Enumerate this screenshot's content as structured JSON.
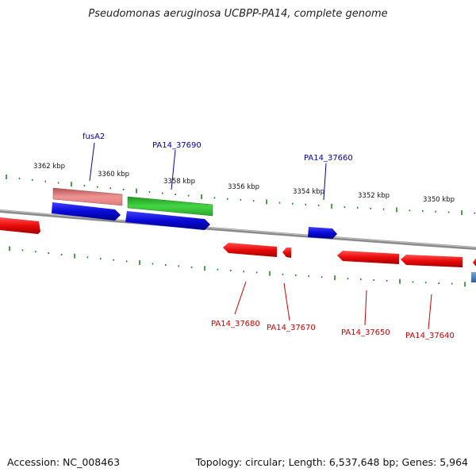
{
  "title": "Pseudomonas aeruginosa UCBPP-PA14, complete genome",
  "footer": {
    "accession": "Accession: NC_008463",
    "summary": "Topology: circular; Length: 6,537,648 bp; Genes: 5,964"
  },
  "colors": {
    "backbone": "#8a8a8a",
    "tick": "#1f8a1f",
    "forward_gene": "#0a0ad8",
    "reverse_gene": "#ea0a0a",
    "highlight_gene": "#2fc12f",
    "faded_gene": "#e88585",
    "partial_gene": "#3a78b8",
    "label_forward": "#0000aa",
    "label_reverse": "#cc0000"
  },
  "scale_labels": [
    "3362 kbp",
    "3360 kbp",
    "3358 kbp",
    "3356 kbp",
    "3354 kbp",
    "3352 kbp",
    "3350 kbp"
  ],
  "gene_labels": {
    "fusA2": "fusA2",
    "pa14_37690": "PA14_37690",
    "pa14_37660": "PA14_37660",
    "pa14_37680": "PA14_37680",
    "pa14_37670": "PA14_37670",
    "pa14_37650": "PA14_37650",
    "pa14_37640": "PA14_37640"
  }
}
